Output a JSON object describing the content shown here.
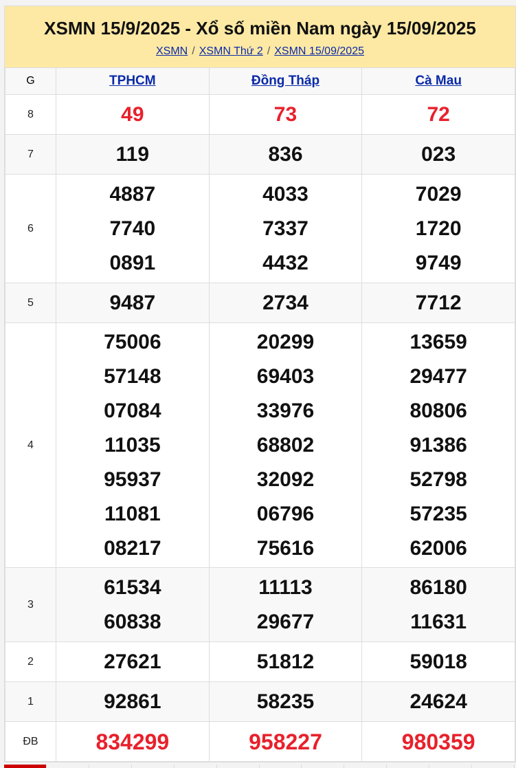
{
  "title": "XSMN 15/9/2025 - Xổ số miền Nam ngày 15/09/2025",
  "breadcrumb": [
    "XSMN",
    "XSMN Thứ 2",
    "XSMN 15/09/2025"
  ],
  "breadcrumb_sep": "/",
  "table": {
    "g_header": "G",
    "provinces": [
      "TPHCM",
      "Đồng Tháp",
      "Cà Mau"
    ],
    "rows": [
      {
        "g": "8",
        "vals": [
          [
            "49"
          ],
          [
            "73"
          ],
          [
            "72"
          ]
        ],
        "red": true
      },
      {
        "g": "7",
        "vals": [
          [
            "119"
          ],
          [
            "836"
          ],
          [
            "023"
          ]
        ]
      },
      {
        "g": "6",
        "vals": [
          [
            "4887",
            "7740",
            "0891"
          ],
          [
            "4033",
            "7337",
            "4432"
          ],
          [
            "7029",
            "1720",
            "9749"
          ]
        ]
      },
      {
        "g": "5",
        "vals": [
          [
            "9487"
          ],
          [
            "2734"
          ],
          [
            "7712"
          ]
        ]
      },
      {
        "g": "4",
        "vals": [
          [
            "75006",
            "57148",
            "07084",
            "11035",
            "95937",
            "11081",
            "08217"
          ],
          [
            "20299",
            "69403",
            "33976",
            "68802",
            "32092",
            "06796",
            "75616"
          ],
          [
            "13659",
            "29477",
            "80806",
            "91386",
            "52798",
            "57235",
            "62006"
          ]
        ]
      },
      {
        "g": "3",
        "vals": [
          [
            "61534",
            "60838"
          ],
          [
            "11113",
            "29677"
          ],
          [
            "86180",
            "11631"
          ]
        ]
      },
      {
        "g": "2",
        "vals": [
          [
            "27621"
          ],
          [
            "51812"
          ],
          [
            "59018"
          ]
        ]
      },
      {
        "g": "1",
        "vals": [
          [
            "92861"
          ],
          [
            "58235"
          ],
          [
            "24624"
          ]
        ]
      },
      {
        "g": "ĐB",
        "vals": [
          [
            "834299"
          ],
          [
            "958227"
          ],
          [
            "980359"
          ]
        ],
        "red": true
      }
    ]
  },
  "colors": {
    "header_bg": "#fde9a4",
    "link": "#0b2aa8",
    "highlight": "#e8212c"
  }
}
